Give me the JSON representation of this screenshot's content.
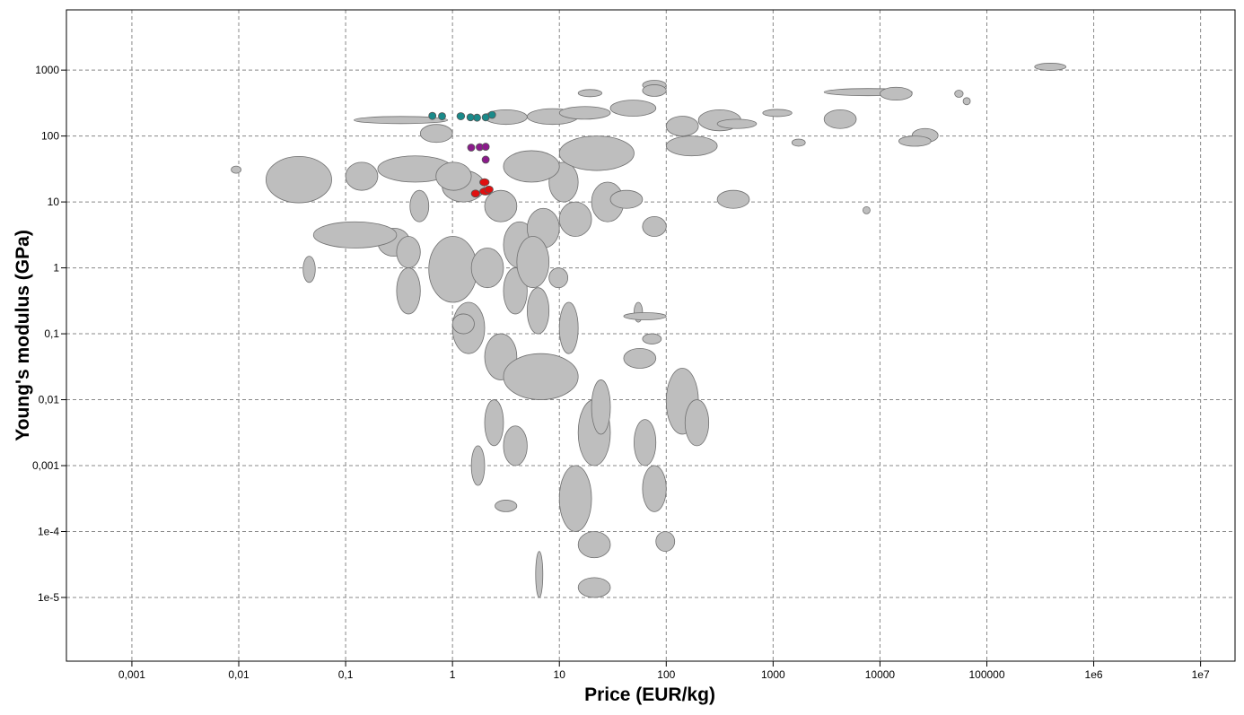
{
  "chart_data": {
    "type": "ellipse",
    "x_label": "Price (EUR/kg)",
    "y_label": "Young's modulus (GPa)",
    "xlog": true,
    "ylog": true,
    "grid": true,
    "xlim": [
      0.000244,
      21000000
    ],
    "ylim": [
      1.08e-06,
      8200
    ],
    "xticks": [
      {
        "value": 0.001,
        "label": "0,001"
      },
      {
        "value": 0.01,
        "label": "0,01"
      },
      {
        "value": 0.1,
        "label": "0,1"
      },
      1,
      10,
      100,
      1000,
      10000,
      100000,
      {
        "value": 1000000,
        "label": "1e6"
      },
      {
        "value": 10000000,
        "label": "1e7"
      }
    ],
    "yticks": [
      {
        "value": 1e-05,
        "label": "1e-5"
      },
      {
        "value": 0.0001,
        "label": "1e-4"
      },
      {
        "value": 0.001,
        "label": "0,001"
      },
      {
        "value": 0.01,
        "label": "0,01"
      },
      {
        "value": 0.1,
        "label": "0,1"
      },
      1,
      10,
      100,
      1000
    ],
    "series": [
      {
        "color": "#bebebe",
        "bounds": [
          [
            0.018,
            0.074,
            9.7,
            49
          ],
          [
            0.0085,
            0.0105,
            28,
            34
          ],
          [
            0.04,
            0.052,
            0.6,
            1.5
          ],
          [
            280000,
            550000,
            1050,
            1200
          ],
          [
            0.12,
            0.9,
            165,
            185
          ],
          [
            0.6,
            1.7,
            0.3,
            3
          ],
          [
            2,
            5,
            150,
            250
          ],
          [
            5,
            15,
            150,
            260
          ],
          [
            10,
            30,
            180,
            280
          ],
          [
            30,
            80,
            200,
            350
          ],
          [
            60,
            100,
            500,
            700
          ],
          [
            60,
            100,
            400,
            600
          ],
          [
            15,
            25,
            400,
            500
          ],
          [
            100,
            200,
            100,
            200
          ],
          [
            200,
            500,
            120,
            250
          ],
          [
            300,
            700,
            130,
            180
          ],
          [
            800,
            1500,
            200,
            250
          ],
          [
            3000,
            6000,
            130,
            250
          ],
          [
            3000,
            20000,
            430,
            500
          ],
          [
            10000,
            20000,
            350,
            550
          ],
          [
            20000,
            35000,
            80,
            130
          ],
          [
            15000,
            30000,
            70,
            100
          ],
          [
            50000,
            60000,
            400,
            480
          ],
          [
            60000,
            70000,
            300,
            380
          ],
          [
            1500,
            2000,
            70,
            90
          ],
          [
            7000,
            8000,
            7,
            8
          ],
          [
            0.2,
            0.4,
            1.5,
            4
          ],
          [
            0.3,
            0.5,
            0.2,
            1
          ],
          [
            0.4,
            0.6,
            5,
            15
          ],
          [
            0.8,
            2,
            10,
            30
          ],
          [
            2,
            4,
            5,
            15
          ],
          [
            3,
            6,
            1,
            5
          ],
          [
            5,
            10,
            2,
            8
          ],
          [
            8,
            15,
            10,
            40
          ],
          [
            10,
            20,
            3,
            10
          ],
          [
            20,
            40,
            5,
            20
          ],
          [
            30,
            60,
            8,
            15
          ],
          [
            60,
            100,
            3,
            6
          ],
          [
            1.5,
            3,
            0.5,
            2
          ],
          [
            3,
            5,
            0.2,
            1
          ],
          [
            4,
            8,
            0.5,
            3
          ],
          [
            1,
            2,
            0.05,
            0.3
          ],
          [
            2,
            4,
            0.02,
            0.1
          ],
          [
            3,
            15,
            0.01,
            0.05
          ],
          [
            5,
            8,
            0.1,
            0.5
          ],
          [
            10,
            15,
            0.05,
            0.3
          ],
          [
            60,
            90,
            0.07,
            0.1
          ],
          [
            40,
            80,
            0.03,
            0.06
          ],
          [
            100,
            200,
            0.003,
            0.03
          ],
          [
            150,
            250,
            0.002,
            0.01
          ],
          [
            1.5,
            2,
            0.0005,
            0.002
          ],
          [
            2,
            3,
            0.002,
            0.01
          ],
          [
            3,
            5,
            0.001,
            0.004
          ],
          [
            2.5,
            4,
            0.0002,
            0.0003
          ],
          [
            6,
            7,
            1e-05,
            5e-05
          ],
          [
            10,
            20,
            0.0001,
            0.001
          ],
          [
            15,
            30,
            0.001,
            0.01
          ],
          [
            20,
            30,
            0.003,
            0.02
          ],
          [
            50,
            80,
            0.001,
            0.005
          ],
          [
            60,
            100,
            0.0002,
            0.001
          ],
          [
            80,
            120,
            5e-05,
            0.0001
          ],
          [
            15,
            30,
            1e-05,
            2e-05
          ],
          [
            15,
            30,
            4e-05,
            0.0001
          ],
          [
            0.05,
            0.3,
            2,
            5
          ],
          [
            0.1,
            0.2,
            15,
            40
          ],
          [
            0.2,
            1,
            20,
            50
          ],
          [
            0.5,
            1,
            80,
            150
          ],
          [
            3,
            10,
            20,
            60
          ],
          [
            10,
            50,
            30,
            100
          ],
          [
            100,
            300,
            50,
            100
          ],
          [
            300,
            600,
            8,
            15
          ],
          [
            50,
            60,
            0.15,
            0.3
          ],
          [
            40,
            100,
            0.17,
            0.2
          ],
          [
            8,
            12,
            0.5,
            1
          ],
          [
            0.7,
            1.5,
            15,
            40
          ],
          [
            0.3,
            0.5,
            1,
            3
          ],
          [
            1,
            1.6,
            0.1,
            0.2
          ]
        ]
      },
      {
        "color": "#1a8a8a",
        "bounds": [
          [
            0.6,
            0.7,
            190,
            215
          ],
          [
            0.75,
            0.85,
            190,
            210
          ],
          [
            1.1,
            1.3,
            190,
            210
          ],
          [
            1.6,
            1.8,
            180,
            200
          ],
          [
            1.9,
            2.2,
            180,
            205
          ],
          [
            2.2,
            2.5,
            200,
            220
          ],
          [
            1.4,
            1.55,
            185,
            200
          ]
        ]
      },
      {
        "color": "#8b1a8b",
        "bounds": [
          [
            1.4,
            1.6,
            62,
            72
          ],
          [
            1.7,
            1.9,
            63,
            73
          ],
          [
            1.9,
            2.2,
            63,
            75
          ],
          [
            1.9,
            2.2,
            40,
            48
          ]
        ]
      },
      {
        "color": "#e01010",
        "bounds": [
          [
            1.8,
            2.2,
            18,
            22
          ],
          [
            1.5,
            1.8,
            12,
            15
          ],
          [
            1.8,
            2.3,
            13,
            16
          ],
          [
            2.0,
            2.4,
            14,
            17
          ]
        ]
      }
    ]
  }
}
